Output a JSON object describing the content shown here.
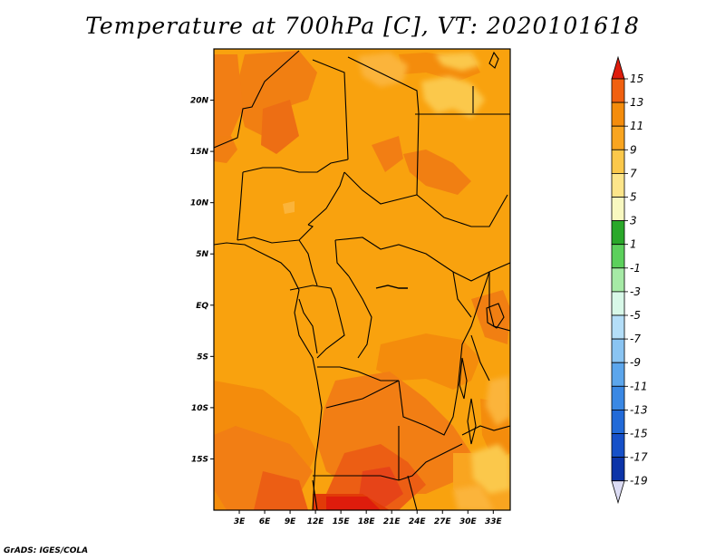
{
  "title": "Temperature at 700hPa [C], VT: 2020101618",
  "footer": "GrADS: IGES/COLA",
  "map": {
    "region": "Central Africa",
    "lon_range": [
      0,
      35
    ],
    "lat_range": [
      -20,
      25
    ],
    "lat_ticks": [
      "20N",
      "15N",
      "10N",
      "5N",
      "EQ",
      "5S",
      "10S",
      "15S"
    ],
    "lat_tick_values": [
      20,
      15,
      10,
      5,
      0,
      -5,
      -10,
      -15
    ],
    "lon_ticks": [
      "3E",
      "6E",
      "9E",
      "12E",
      "15E",
      "18E",
      "21E",
      "24E",
      "27E",
      "30E",
      "33E"
    ],
    "lon_tick_values": [
      3,
      6,
      9,
      12,
      15,
      18,
      21,
      24,
      27,
      30,
      33
    ],
    "dominant_range": "9 to 11 C",
    "hot_regions": "12 to 15 C over southern Angola/Namibia and parts of the Sahel"
  },
  "colorbar": {
    "labels": [
      "15",
      "13",
      "11",
      "9",
      "7",
      "5",
      "3",
      "1",
      "-1",
      "-3",
      "-5",
      "-7",
      "-9",
      "-11",
      "-13",
      "-15",
      "-17",
      "-19"
    ],
    "colors": [
      "#e23a08",
      "#f06010",
      "#f48c0c",
      "#f9a520",
      "#fbc84b",
      "#fde58a",
      "#f8f8c0",
      "#2aa82a",
      "#5cd05c",
      "#a6eaa6",
      "#d8f8e8",
      "#b4def8",
      "#8ac4f2",
      "#5ca6ec",
      "#3a88e4",
      "#226ad8",
      "#1650c8",
      "#0c34a8",
      "#060a6a"
    ],
    "over_color": "#de1c0c",
    "under_color": "#dcdcf4"
  }
}
